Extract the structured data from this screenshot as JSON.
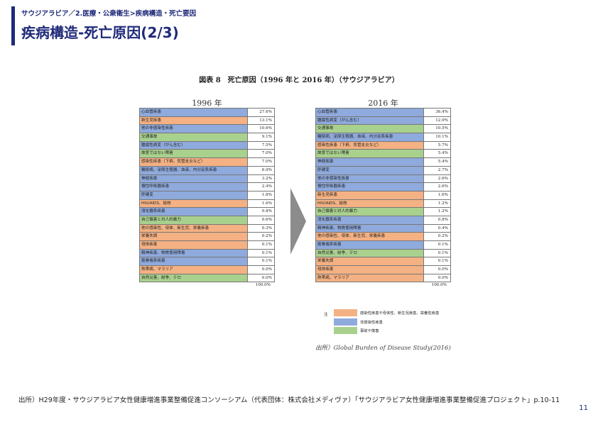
{
  "header": {
    "breadcrumb": "サウジアラビア／2.医療・公衆衛生>疾病構造・死亡要因",
    "title": "疾病構造-死亡原因(2/3)"
  },
  "figure": {
    "title": "図表 8　死亡原因（1996 年と 2016 年）（サウジアラビア）",
    "left": {
      "year": "1996 年",
      "rows": [
        {
          "label": "心血管疾患",
          "value": "27.6%",
          "cat": 2
        },
        {
          "label": "新生児疾患",
          "value": "13.1%",
          "cat": 1
        },
        {
          "label": "他の非感染性疾患",
          "value": "10.6%",
          "cat": 2
        },
        {
          "label": "交通事故",
          "value": "9.1%",
          "cat": 3
        },
        {
          "label": "腫瘍性病変（がん含む）",
          "value": "7.5%",
          "cat": 2
        },
        {
          "label": "故意ではない障害",
          "value": "7.0%",
          "cat": 3
        },
        {
          "label": "感染性疾患（下痢、気管支炎など）",
          "value": "7.0%",
          "cat": 1
        },
        {
          "label": "糖尿病、泌尿生殖器、血液、内分泌系疾患",
          "value": "6.9%",
          "cat": 2
        },
        {
          "label": "神経疾患",
          "value": "3.2%",
          "cat": 2
        },
        {
          "label": "慢性呼吸器疾患",
          "value": "2.4%",
          "cat": 2
        },
        {
          "label": "肝硬変",
          "value": "1.8%",
          "cat": 2
        },
        {
          "label": "HIV/AIDS、結核",
          "value": "1.6%",
          "cat": 1
        },
        {
          "label": "消化器系疾患",
          "value": "0.8%",
          "cat": 2
        },
        {
          "label": "自己傷害と対人的暴力",
          "value": "0.6%",
          "cat": 3
        },
        {
          "label": "他の感染性、母体、新生児、栄養疾患",
          "value": "0.3%",
          "cat": 1
        },
        {
          "label": "栄養失調",
          "value": "0.2%",
          "cat": 1
        },
        {
          "label": "母体疾患",
          "value": "0.1%",
          "cat": 1
        },
        {
          "label": "精神疾患、物質使用障害",
          "value": "0.1%",
          "cat": 2
        },
        {
          "label": "筋骨格系疾患",
          "value": "0.1%",
          "cat": 2
        },
        {
          "label": "熱帯病、マラリア",
          "value": "0.0%",
          "cat": 1
        },
        {
          "label": "自然災害、紛争、テロ",
          "value": "0.0%",
          "cat": 3
        }
      ],
      "total": "100.0%"
    },
    "right": {
      "year": "2016 年",
      "rows": [
        {
          "label": "心血管疾患",
          "value": "36.4%",
          "cat": 2
        },
        {
          "label": "腫瘍性病変（がん含む）",
          "value": "12.9%",
          "cat": 2
        },
        {
          "label": "交通事故",
          "value": "10.5%",
          "cat": 3
        },
        {
          "label": "糖尿病、泌尿生殖器、血液、内分泌系疾患",
          "value": "10.1%",
          "cat": 2
        },
        {
          "label": "感染性疾患（下痢、気管支炎など）",
          "value": "5.7%",
          "cat": 1
        },
        {
          "label": "故意ではない障害",
          "value": "5.4%",
          "cat": 3
        },
        {
          "label": "神経疾患",
          "value": "5.4%",
          "cat": 2
        },
        {
          "label": "肝硬変",
          "value": "2.7%",
          "cat": 2
        },
        {
          "label": "他の非感染性疾患",
          "value": "2.6%",
          "cat": 2
        },
        {
          "label": "慢性呼吸器疾患",
          "value": "2.6%",
          "cat": 2
        },
        {
          "label": "新生児疾患",
          "value": "1.6%",
          "cat": 1
        },
        {
          "label": "HIV/AIDS、結核",
          "value": "1.2%",
          "cat": 1
        },
        {
          "label": "自己傷害と対人的暴力",
          "value": "1.2%",
          "cat": 3
        },
        {
          "label": "消化器系疾患",
          "value": "0.8%",
          "cat": 2
        },
        {
          "label": "精神疾患、物質使用障害",
          "value": "0.4%",
          "cat": 2
        },
        {
          "label": "他の感染性、母体、新生児、栄養疾患",
          "value": "0.2%",
          "cat": 1
        },
        {
          "label": "筋骨格系疾患",
          "value": "0.1%",
          "cat": 2
        },
        {
          "label": "自然災害、紛争、テロ",
          "value": "0.1%",
          "cat": 3
        },
        {
          "label": "栄養失調",
          "value": "0.1%",
          "cat": 1
        },
        {
          "label": "母体疾患",
          "value": "0.0%",
          "cat": 1
        },
        {
          "label": "熱帯病、マラリア",
          "value": "0.0%",
          "cat": 1
        }
      ],
      "total": "100.0%"
    },
    "legend": {
      "note": "注",
      "items": [
        {
          "label": "感染性疾患や母体性、新生児疾患、栄養性疾患",
          "color": "#f4b183"
        },
        {
          "label": "非感染性疾患",
          "color": "#8faadc"
        },
        {
          "label": "事故や傷害",
          "color": "#a9d18e"
        }
      ]
    },
    "source": "出所）Global Burden of Disease Study(2016)"
  },
  "footer": {
    "source": "出所）H29年度・サウジアラビア女性健康増進事業整備促進コンソーシアム（代表団体：株式会社メディヴァ）「サウジアラビア女性健康増進事業整備促進プロジェクト」p.10-11",
    "page_number": "11"
  }
}
